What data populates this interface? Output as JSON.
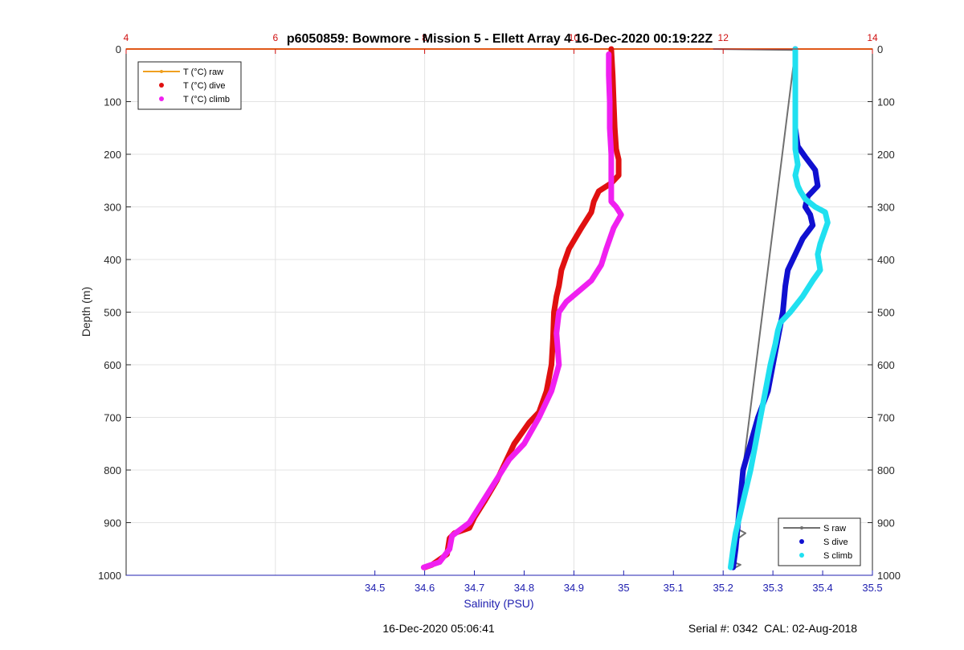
{
  "chart_data": {
    "type": "line",
    "title": "p6050859: Bowmore - Mission 5 - Ellett Array 4 16-Dec-2020 00:19:22Z",
    "xlabel": "Salinity (PSU)",
    "ylabel": "Depth (m)",
    "footer_left": "16-Dec-2020 05:06:41",
    "footer_right": "Serial #: 0342  CAL: 02-Aug-2018",
    "grid": true,
    "y_axis": {
      "range": [
        0,
        1000
      ],
      "reversed": true,
      "ticks": [
        0,
        100,
        200,
        300,
        400,
        500,
        600,
        700,
        800,
        900,
        1000
      ],
      "tick_labels": [
        "0",
        "100",
        "200",
        "300",
        "400",
        "500",
        "600",
        "700",
        "800",
        "900",
        "1000"
      ]
    },
    "x_axis_salinity": {
      "range": [
        34.0,
        35.5
      ],
      "ticks": [
        34.5,
        34.6,
        34.7,
        34.8,
        34.9,
        35.0,
        35.1,
        35.2,
        35.3,
        35.4,
        35.5
      ],
      "tick_labels": [
        "34.5",
        "34.6",
        "34.7",
        "34.8",
        "34.9",
        "35",
        "35.1",
        "35.2",
        "35.3",
        "35.4",
        "35.5"
      ],
      "color": "#2020b0"
    },
    "x_axis_temperature": {
      "range": [
        4,
        14
      ],
      "ticks": [
        4,
        6,
        8,
        10,
        12,
        14
      ],
      "tick_labels": [
        "4",
        "6",
        "8",
        "10",
        "12",
        "14"
      ],
      "color": "#d01010"
    },
    "legend_temperature": {
      "placement": "top-left",
      "entries": [
        "T (°C) raw",
        "T (°C) dive",
        "T (°C) climb"
      ]
    },
    "legend_salinity": {
      "placement": "bottom-right",
      "entries": [
        "S raw",
        "S dive",
        "S climb"
      ]
    },
    "series": [
      {
        "name": "T (°C) raw",
        "axis": "temperature",
        "color": "#f0a020",
        "style": "line",
        "points": [
          [
            4.0,
            0
          ],
          [
            14.0,
            0
          ]
        ]
      },
      {
        "name": "S raw",
        "axis": "salinity",
        "color": "#707070",
        "style": "line",
        "points": [
          [
            35.18,
            0
          ],
          [
            35.345,
            2
          ],
          [
            35.225,
            910
          ],
          [
            35.245,
            920
          ],
          [
            35.23,
            930
          ],
          [
            35.22,
            975
          ],
          [
            35.235,
            980
          ],
          [
            35.225,
            985
          ]
        ]
      },
      {
        "name": "T (°C) dive",
        "axis": "salinity",
        "color": "#e01010",
        "style": "marker",
        "points": [
          [
            34.975,
            0
          ],
          [
            34.978,
            50
          ],
          [
            34.98,
            100
          ],
          [
            34.982,
            150
          ],
          [
            34.985,
            190
          ],
          [
            34.99,
            210
          ],
          [
            34.99,
            240
          ],
          [
            34.975,
            255
          ],
          [
            34.95,
            270
          ],
          [
            34.94,
            290
          ],
          [
            34.935,
            310
          ],
          [
            34.915,
            340
          ],
          [
            34.89,
            380
          ],
          [
            34.875,
            420
          ],
          [
            34.87,
            450
          ],
          [
            34.865,
            470
          ],
          [
            34.86,
            500
          ],
          [
            34.858,
            550
          ],
          [
            34.855,
            600
          ],
          [
            34.845,
            650
          ],
          [
            34.83,
            690
          ],
          [
            34.81,
            710
          ],
          [
            34.78,
            750
          ],
          [
            34.765,
            780
          ],
          [
            34.745,
            820
          ],
          [
            34.72,
            860
          ],
          [
            34.7,
            890
          ],
          [
            34.69,
            910
          ],
          [
            34.66,
            920
          ],
          [
            34.65,
            930
          ],
          [
            34.645,
            960
          ],
          [
            34.615,
            980
          ],
          [
            34.6,
            985
          ]
        ]
      },
      {
        "name": "T (°C) climb",
        "axis": "salinity",
        "color": "#f020f0",
        "style": "marker",
        "points": [
          [
            34.598,
            985
          ],
          [
            34.63,
            975
          ],
          [
            34.65,
            950
          ],
          [
            34.655,
            925
          ],
          [
            34.69,
            900
          ],
          [
            34.71,
            870
          ],
          [
            34.73,
            840
          ],
          [
            34.75,
            810
          ],
          [
            34.77,
            780
          ],
          [
            34.8,
            750
          ],
          [
            34.83,
            700
          ],
          [
            34.855,
            650
          ],
          [
            34.87,
            600
          ],
          [
            34.865,
            540
          ],
          [
            34.87,
            500
          ],
          [
            34.885,
            480
          ],
          [
            34.91,
            460
          ],
          [
            34.935,
            440
          ],
          [
            34.955,
            410
          ],
          [
            34.965,
            380
          ],
          [
            34.98,
            340
          ],
          [
            34.995,
            315
          ],
          [
            34.985,
            300
          ],
          [
            34.975,
            290
          ],
          [
            34.975,
            250
          ],
          [
            34.975,
            200
          ],
          [
            34.972,
            150
          ],
          [
            34.972,
            100
          ],
          [
            34.97,
            50
          ],
          [
            34.97,
            10
          ]
        ]
      },
      {
        "name": "S dive",
        "axis": "salinity",
        "color": "#1010d0",
        "style": "marker",
        "points": [
          [
            35.345,
            0
          ],
          [
            35.345,
            100
          ],
          [
            35.345,
            150
          ],
          [
            35.35,
            185
          ],
          [
            35.365,
            205
          ],
          [
            35.385,
            230
          ],
          [
            35.39,
            260
          ],
          [
            35.37,
            280
          ],
          [
            35.365,
            300
          ],
          [
            35.375,
            315
          ],
          [
            35.38,
            335
          ],
          [
            35.36,
            360
          ],
          [
            35.345,
            390
          ],
          [
            35.33,
            420
          ],
          [
            35.325,
            450
          ],
          [
            35.32,
            500
          ],
          [
            35.31,
            550
          ],
          [
            35.3,
            600
          ],
          [
            35.29,
            650
          ],
          [
            35.27,
            700
          ],
          [
            35.255,
            750
          ],
          [
            35.24,
            800
          ],
          [
            35.235,
            850
          ],
          [
            35.23,
            900
          ],
          [
            35.225,
            950
          ],
          [
            35.22,
            985
          ]
        ]
      },
      {
        "name": "S climb",
        "axis": "salinity",
        "color": "#20e0f0",
        "style": "marker",
        "points": [
          [
            35.215,
            985
          ],
          [
            35.22,
            950
          ],
          [
            35.225,
            920
          ],
          [
            35.235,
            880
          ],
          [
            35.245,
            840
          ],
          [
            35.255,
            800
          ],
          [
            35.265,
            750
          ],
          [
            35.275,
            700
          ],
          [
            35.285,
            650
          ],
          [
            35.295,
            600
          ],
          [
            35.305,
            560
          ],
          [
            35.31,
            535
          ],
          [
            35.315,
            520
          ],
          [
            35.335,
            500
          ],
          [
            35.36,
            470
          ],
          [
            35.38,
            440
          ],
          [
            35.395,
            420
          ],
          [
            35.39,
            390
          ],
          [
            35.395,
            370
          ],
          [
            35.41,
            330
          ],
          [
            35.405,
            310
          ],
          [
            35.385,
            300
          ],
          [
            35.365,
            285
          ],
          [
            35.355,
            270
          ],
          [
            35.35,
            260
          ],
          [
            35.345,
            240
          ],
          [
            35.35,
            220
          ],
          [
            35.345,
            190
          ],
          [
            35.345,
            100
          ],
          [
            35.345,
            0
          ]
        ]
      }
    ]
  }
}
